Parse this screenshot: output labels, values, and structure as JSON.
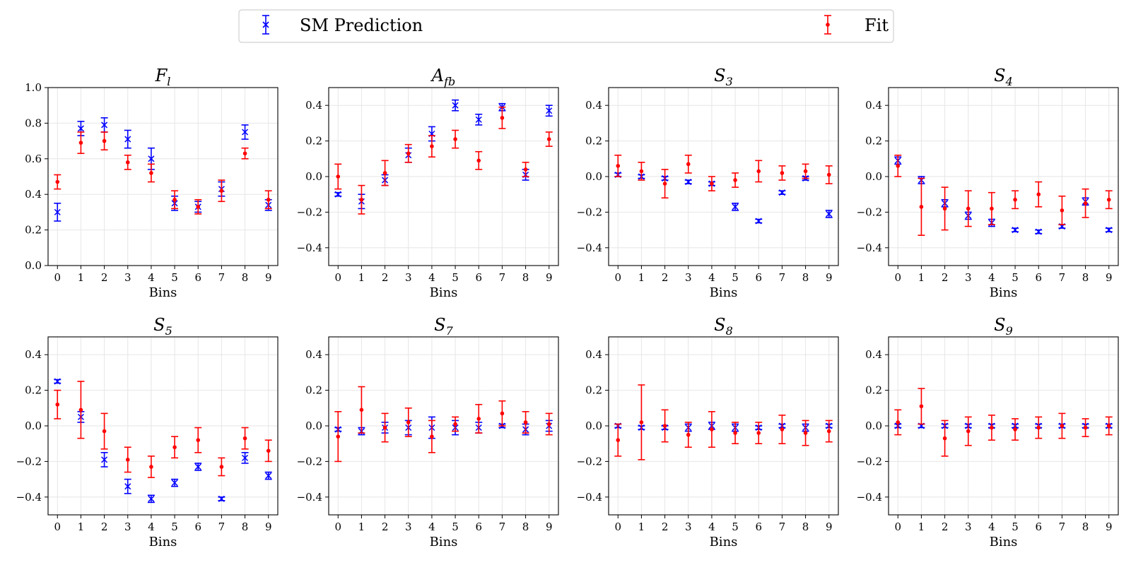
{
  "legend": {
    "placement": "top-center",
    "entries": [
      {
        "label": "SM Prediction",
        "marker": "x",
        "color": "#0000ff"
      },
      {
        "label": "Fit",
        "marker": "dot",
        "color": "#ff0000"
      }
    ]
  },
  "chart_data": [
    {
      "type": "scatter",
      "title": "F",
      "title_sub": "l",
      "xlabel": "Bins",
      "ylabel": "",
      "x": [
        0,
        1,
        2,
        3,
        4,
        5,
        6,
        7,
        8,
        9
      ],
      "ylim": [
        0.0,
        1.0
      ],
      "yticks": [
        "0.0",
        "0.2",
        "0.4",
        "0.6",
        "0.8",
        "1.0"
      ],
      "grid": true,
      "series": [
        {
          "name": "SM Prediction",
          "color": "#0000ff",
          "values": [
            0.3,
            0.77,
            0.79,
            0.71,
            0.6,
            0.35,
            0.33,
            0.43,
            0.75,
            0.34
          ],
          "errors": [
            0.05,
            0.04,
            0.04,
            0.05,
            0.06,
            0.04,
            0.03,
            0.04,
            0.04,
            0.03
          ]
        },
        {
          "name": "Fit",
          "color": "#ff0000",
          "values": [
            0.47,
            0.69,
            0.7,
            0.58,
            0.52,
            0.37,
            0.33,
            0.42,
            0.63,
            0.37
          ],
          "errors": [
            0.04,
            0.06,
            0.05,
            0.04,
            0.05,
            0.05,
            0.04,
            0.06,
            0.03,
            0.05
          ]
        }
      ]
    },
    {
      "type": "scatter",
      "title": "A",
      "title_sub": "fb",
      "xlabel": "Bins",
      "ylabel": "",
      "x": [
        0,
        1,
        2,
        3,
        4,
        5,
        6,
        7,
        8,
        9
      ],
      "ylim": [
        -0.5,
        0.5
      ],
      "yticks": [
        "−0.4",
        "−0.2",
        "0.0",
        "0.2",
        "0.4"
      ],
      "grid": true,
      "series": [
        {
          "name": "SM Prediction",
          "color": "#0000ff",
          "values": [
            -0.1,
            -0.14,
            -0.02,
            0.12,
            0.24,
            0.4,
            0.32,
            0.39,
            0.01,
            0.37
          ],
          "errors": [
            0.01,
            0.04,
            0.03,
            0.04,
            0.04,
            0.03,
            0.03,
            0.02,
            0.03,
            0.03
          ]
        },
        {
          "name": "Fit",
          "color": "#ff0000",
          "values": [
            0.0,
            -0.13,
            0.02,
            0.13,
            0.17,
            0.21,
            0.09,
            0.33,
            0.04,
            0.21
          ],
          "errors": [
            0.07,
            0.08,
            0.07,
            0.05,
            0.06,
            0.05,
            0.05,
            0.06,
            0.04,
            0.04
          ]
        }
      ]
    },
    {
      "type": "scatter",
      "title": "S",
      "title_sub": "3",
      "xlabel": "Bins",
      "ylabel": "",
      "x": [
        0,
        1,
        2,
        3,
        4,
        5,
        6,
        7,
        8,
        9
      ],
      "ylim": [
        -0.5,
        0.5
      ],
      "yticks": [
        "−0.4",
        "−0.2",
        "0.0",
        "0.2",
        "0.4"
      ],
      "grid": true,
      "series": [
        {
          "name": "SM Prediction",
          "color": "#0000ff",
          "values": [
            0.01,
            0.0,
            -0.01,
            -0.03,
            -0.04,
            -0.17,
            -0.25,
            -0.09,
            -0.01,
            -0.21
          ],
          "errors": [
            0.01,
            0.01,
            0.01,
            0.01,
            0.01,
            0.02,
            0.01,
            0.01,
            0.01,
            0.02
          ]
        },
        {
          "name": "Fit",
          "color": "#ff0000",
          "values": [
            0.06,
            0.03,
            -0.04,
            0.07,
            -0.04,
            -0.02,
            0.03,
            0.02,
            0.03,
            0.01
          ],
          "errors": [
            0.06,
            0.05,
            0.08,
            0.05,
            0.04,
            0.04,
            0.06,
            0.04,
            0.04,
            0.05
          ]
        }
      ]
    },
    {
      "type": "scatter",
      "title": "S",
      "title_sub": "4",
      "xlabel": "Bins",
      "ylabel": "",
      "x": [
        0,
        1,
        2,
        3,
        4,
        5,
        6,
        7,
        8,
        9
      ],
      "ylim": [
        -0.5,
        0.5
      ],
      "yticks": [
        "−0.4",
        "−0.2",
        "0.0",
        "0.2",
        "0.4"
      ],
      "grid": true,
      "series": [
        {
          "name": "SM Prediction",
          "color": "#0000ff",
          "values": [
            0.09,
            -0.02,
            -0.15,
            -0.22,
            -0.26,
            -0.3,
            -0.31,
            -0.28,
            -0.14,
            -0.3
          ],
          "errors": [
            0.02,
            0.02,
            0.02,
            0.02,
            0.02,
            0.01,
            0.01,
            0.01,
            0.02,
            0.01
          ]
        },
        {
          "name": "Fit",
          "color": "#ff0000",
          "values": [
            0.06,
            -0.17,
            -0.18,
            -0.18,
            -0.18,
            -0.13,
            -0.1,
            -0.19,
            -0.15,
            -0.13
          ],
          "errors": [
            0.06,
            0.16,
            0.12,
            0.1,
            0.09,
            0.05,
            0.07,
            0.08,
            0.08,
            0.05
          ]
        }
      ]
    },
    {
      "type": "scatter",
      "title": "S",
      "title_sub": "5",
      "xlabel": "Bins",
      "ylabel": "",
      "x": [
        0,
        1,
        2,
        3,
        4,
        5,
        6,
        7,
        8,
        9
      ],
      "ylim": [
        -0.5,
        0.5
      ],
      "yticks": [
        "−0.4",
        "−0.2",
        "0.0",
        "0.2",
        "0.4"
      ],
      "grid": true,
      "series": [
        {
          "name": "SM Prediction",
          "color": "#0000ff",
          "values": [
            0.25,
            0.05,
            -0.19,
            -0.34,
            -0.41,
            -0.32,
            -0.23,
            -0.41,
            -0.18,
            -0.28
          ],
          "errors": [
            0.01,
            0.03,
            0.04,
            0.04,
            0.02,
            0.02,
            0.02,
            0.01,
            0.03,
            0.02
          ]
        },
        {
          "name": "Fit",
          "color": "#ff0000",
          "values": [
            0.12,
            0.09,
            -0.03,
            -0.19,
            -0.23,
            -0.12,
            -0.08,
            -0.23,
            -0.07,
            -0.14
          ],
          "errors": [
            0.08,
            0.16,
            0.1,
            0.07,
            0.06,
            0.06,
            0.07,
            0.05,
            0.06,
            0.06
          ]
        }
      ]
    },
    {
      "type": "scatter",
      "title": "S",
      "title_sub": "7",
      "xlabel": "Bins",
      "ylabel": "",
      "x": [
        0,
        1,
        2,
        3,
        4,
        5,
        6,
        7,
        8,
        9
      ],
      "ylim": [
        -0.5,
        0.5
      ],
      "yticks": [
        "−0.4",
        "−0.2",
        "0.0",
        "0.2",
        "0.4"
      ],
      "grid": true,
      "series": [
        {
          "name": "SM Prediction",
          "color": "#0000ff",
          "values": [
            -0.02,
            -0.03,
            -0.01,
            -0.01,
            -0.01,
            -0.01,
            -0.01,
            0.0,
            -0.02,
            0.0
          ],
          "errors": [
            0.01,
            0.02,
            0.03,
            0.04,
            0.06,
            0.04,
            0.03,
            0.01,
            0.03,
            0.03
          ]
        },
        {
          "name": "Fit",
          "color": "#ff0000",
          "values": [
            -0.06,
            0.09,
            -0.01,
            0.02,
            -0.06,
            0.01,
            0.04,
            0.07,
            0.02,
            0.01
          ],
          "errors": [
            0.14,
            0.13,
            0.08,
            0.08,
            0.09,
            0.04,
            0.08,
            0.07,
            0.06,
            0.06
          ]
        }
      ]
    },
    {
      "type": "scatter",
      "title": "S",
      "title_sub": "8",
      "xlabel": "Bins",
      "ylabel": "",
      "x": [
        0,
        1,
        2,
        3,
        4,
        5,
        6,
        7,
        8,
        9
      ],
      "ylim": [
        -0.5,
        0.5
      ],
      "yticks": [
        "−0.4",
        "−0.2",
        "0.0",
        "0.2",
        "0.4"
      ],
      "grid": true,
      "series": [
        {
          "name": "SM Prediction",
          "color": "#0000ff",
          "values": [
            0.0,
            -0.01,
            -0.01,
            -0.01,
            0.0,
            -0.01,
            -0.01,
            0.0,
            -0.01,
            0.0
          ],
          "errors": [
            0.01,
            0.01,
            0.01,
            0.02,
            0.02,
            0.02,
            0.01,
            0.01,
            0.02,
            0.01
          ]
        },
        {
          "name": "Fit",
          "color": "#ff0000",
          "values": [
            -0.08,
            0.02,
            0.0,
            -0.05,
            -0.02,
            -0.04,
            -0.04,
            -0.02,
            -0.04,
            -0.03
          ],
          "errors": [
            0.09,
            0.21,
            0.09,
            0.07,
            0.1,
            0.06,
            0.06,
            0.08,
            0.07,
            0.06
          ]
        }
      ]
    },
    {
      "type": "scatter",
      "title": "S",
      "title_sub": "9",
      "xlabel": "Bins",
      "ylabel": "",
      "x": [
        0,
        1,
        2,
        3,
        4,
        5,
        6,
        7,
        8,
        9
      ],
      "ylim": [
        -0.5,
        0.5
      ],
      "yticks": [
        "−0.4",
        "−0.2",
        "0.0",
        "0.2",
        "0.4"
      ],
      "grid": true,
      "series": [
        {
          "name": "SM Prediction",
          "color": "#0000ff",
          "values": [
            0.0,
            0.0,
            0.0,
            0.0,
            0.0,
            0.0,
            0.0,
            0.0,
            0.0,
            0.0
          ],
          "errors": [
            0.01,
            0.01,
            0.01,
            0.01,
            0.01,
            0.01,
            0.01,
            0.01,
            0.01,
            0.01
          ]
        },
        {
          "name": "Fit",
          "color": "#ff0000",
          "values": [
            0.02,
            0.11,
            -0.07,
            -0.03,
            -0.01,
            -0.02,
            -0.01,
            0.0,
            -0.01,
            0.0
          ],
          "errors": [
            0.07,
            0.1,
            0.1,
            0.08,
            0.07,
            0.06,
            0.06,
            0.07,
            0.05,
            0.05
          ]
        }
      ]
    }
  ]
}
